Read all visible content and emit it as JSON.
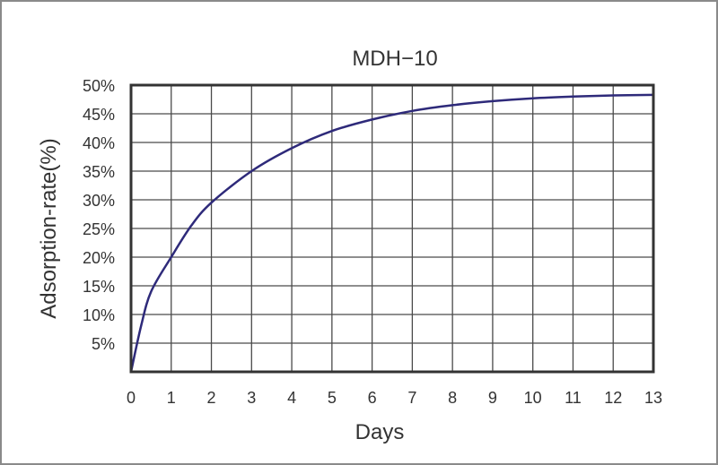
{
  "chart_data": {
    "type": "line",
    "title": "MDH−10",
    "xlabel": "Days",
    "ylabel": "Adsorption-rate(%)",
    "x_ticks": [
      "0",
      "1",
      "2",
      "3",
      "4",
      "5",
      "6",
      "7",
      "8",
      "9",
      "10",
      "11",
      "12",
      "13"
    ],
    "y_ticks": [
      "5%",
      "10%",
      "15%",
      "20%",
      "25%",
      "30%",
      "35%",
      "40%",
      "45%",
      "50%"
    ],
    "xlim": [
      0,
      13
    ],
    "ylim": [
      0,
      50
    ],
    "grid": true,
    "legend": null,
    "series": [
      {
        "name": "MDH-10",
        "color": "#2e2a7a",
        "x": [
          0,
          0.25,
          0.5,
          1,
          1.5,
          2,
          3,
          4,
          5,
          6,
          7,
          8,
          9,
          10,
          11,
          12,
          13
        ],
        "values": [
          0,
          8,
          14,
          20,
          25.5,
          29.5,
          35,
          39,
          42,
          44,
          45.5,
          46.5,
          47.2,
          47.7,
          48,
          48.2,
          48.3
        ]
      }
    ]
  },
  "colors": {
    "grid": "#4a4a4a",
    "frame": "#333333",
    "text": "#333333",
    "curve": "#2e2a7a"
  }
}
